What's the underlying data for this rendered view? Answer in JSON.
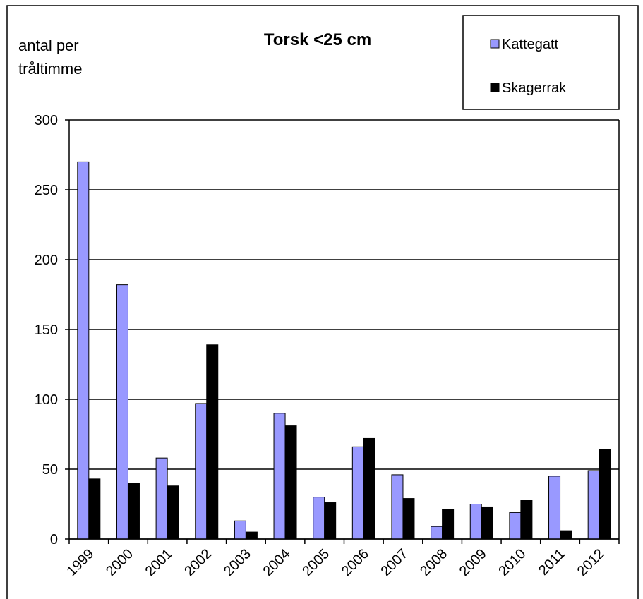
{
  "chart_data": {
    "type": "bar",
    "title": "Torsk <25 cm",
    "y_label": "antal per tråltimme",
    "categories": [
      "1999",
      "2000",
      "2001",
      "2002",
      "2003",
      "2004",
      "2005",
      "2006",
      "2007",
      "2008",
      "2009",
      "2010",
      "2011",
      "2012"
    ],
    "series": [
      {
        "name": "Kattegatt",
        "color": "#9999ff",
        "values": [
          270,
          182,
          58,
          97,
          13,
          90,
          30,
          66,
          46,
          9,
          25,
          19,
          45,
          49
        ]
      },
      {
        "name": "Skagerrak",
        "color": "#000000",
        "values": [
          43,
          40,
          38,
          139,
          5,
          81,
          26,
          72,
          29,
          21,
          23,
          28,
          6,
          64
        ]
      }
    ],
    "ylim": [
      0,
      300
    ],
    "yticks": [
      0,
      50,
      100,
      150,
      200,
      250,
      300
    ],
    "grid": true,
    "legend": "top-right"
  }
}
